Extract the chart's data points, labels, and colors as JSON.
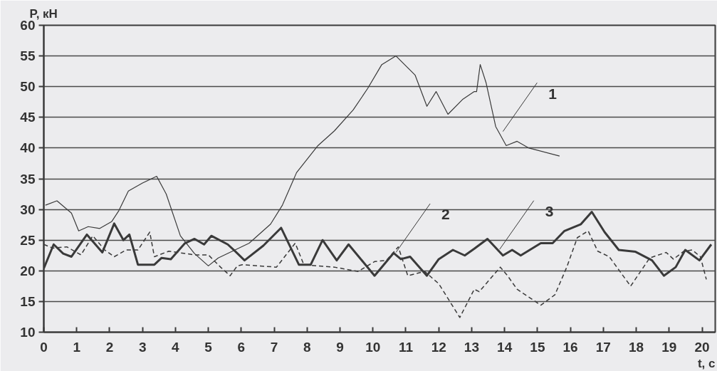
{
  "chart_data": {
    "type": "line",
    "xlabel": "t, c",
    "ylabel": "P, кН",
    "xlim": [
      0,
      20.4
    ],
    "ylim": [
      10,
      60
    ],
    "xticks": [
      0,
      1,
      2,
      3,
      4,
      5,
      6,
      7,
      8,
      9,
      10,
      11,
      12,
      13,
      14,
      15,
      16,
      17,
      18,
      19,
      20
    ],
    "yticks": [
      10,
      15,
      20,
      25,
      30,
      35,
      40,
      45,
      50,
      55,
      60
    ],
    "grid": "y",
    "series": [
      {
        "color": "#3a3a3a",
        "line_style": "solid",
        "x": [
          0.05,
          0.4,
          0.84,
          1.06,
          1.35,
          1.7,
          2.06,
          2.28,
          2.57,
          3,
          3.43,
          3.72,
          4.15,
          4.58,
          5,
          5.3,
          5.81,
          6.24,
          6.89,
          7.25,
          7.68,
          8.33,
          8.83,
          9.4,
          9.84,
          10.27,
          10.7,
          11.28,
          11.64,
          11.92,
          12.28,
          12.72,
          13.08,
          13.15,
          13.26,
          13.44,
          13.73,
          14.05,
          14.38,
          14.74,
          15.67
        ],
        "values": [
          30.7,
          31.4,
          29.4,
          26.5,
          27.2,
          26.9,
          28,
          29.8,
          33,
          34.3,
          35.4,
          32.5,
          25.7,
          22.8,
          20.8,
          22.1,
          23.4,
          24.5,
          27.6,
          30.7,
          36,
          40.4,
          42.8,
          46.2,
          49.7,
          53.6,
          55,
          51.9,
          46.8,
          49.2,
          45.5,
          47.9,
          49.2,
          49.2,
          53.6,
          50.6,
          43.5,
          40.4,
          41.1,
          40,
          38.7
        ]
      },
      {
        "color": "#3a3a3a",
        "line_style": "dashed",
        "x": [
          0,
          0.27,
          0.7,
          1.13,
          1.49,
          1.85,
          2.14,
          2.5,
          2.86,
          3.22,
          3.36,
          3.8,
          4.58,
          5,
          5.37,
          5.66,
          5.88,
          6.03,
          6.53,
          7.07,
          7.64,
          7.9,
          8.33,
          8.83,
          9.55,
          10.05,
          10.41,
          10.77,
          11.06,
          11.57,
          12,
          12.64,
          13.08,
          13.23,
          13.87,
          14.09,
          14.38,
          15.1,
          15.53,
          15.89,
          16.21,
          16.54,
          16.83,
          17.18,
          17.83,
          18.41,
          18.91,
          19.13,
          19.45,
          19.7,
          19.95,
          20.13
        ],
        "values": [
          24.3,
          23.7,
          23.9,
          22.6,
          25.7,
          23.4,
          22.3,
          23.4,
          23.4,
          26.3,
          22.3,
          23.2,
          22.6,
          22.6,
          20.6,
          19.2,
          20.8,
          21,
          20.8,
          20.6,
          24.5,
          21,
          20.8,
          20.6,
          19.9,
          21.5,
          21.7,
          23.9,
          19.2,
          19.9,
          17.9,
          12.4,
          17,
          16.6,
          20.6,
          19.2,
          17,
          14.4,
          16.1,
          20.6,
          25.4,
          26.5,
          23.2,
          22.3,
          17.5,
          22.1,
          23,
          21.9,
          23.2,
          23.4,
          22.3,
          18.6
        ]
      },
      {
        "color": "#3a3a3a",
        "line_style": "solid",
        "x": [
          0,
          0.3,
          0.59,
          0.84,
          1.31,
          1.78,
          2.14,
          2.42,
          2.6,
          2.86,
          3.36,
          3.58,
          3.86,
          4.29,
          4.58,
          4.87,
          5.09,
          5.59,
          5.81,
          6.1,
          6.67,
          7.21,
          7.75,
          8.11,
          8.47,
          8.9,
          9.26,
          10.05,
          10.63,
          10.85,
          11.13,
          11.64,
          12,
          12.43,
          12.79,
          13.08,
          13.48,
          13.95,
          14.23,
          14.49,
          15.1,
          15.46,
          15.82,
          16.32,
          16.65,
          17.04,
          17.47,
          17.98,
          18.48,
          18.84,
          19.2,
          19.49,
          19.92,
          20.28
        ],
        "values": [
          20.4,
          24.3,
          22.8,
          22.3,
          25.9,
          23,
          27.7,
          25,
          25.9,
          21,
          21,
          22.1,
          21.9,
          24.5,
          25.2,
          24.3,
          25.7,
          24.3,
          23.2,
          21.7,
          24.1,
          27,
          21,
          21,
          25,
          21.7,
          24.3,
          19.2,
          22.9,
          21.9,
          22.3,
          19.2,
          21.9,
          23.4,
          22.5,
          23.6,
          25.2,
          22.5,
          23.4,
          22.5,
          24.5,
          24.5,
          26.5,
          27.6,
          29.6,
          26.3,
          23.4,
          23.1,
          21.7,
          19.2,
          20.6,
          23.4,
          21.7,
          24.3
        ]
      }
    ],
    "annotations": [
      {
        "text": "1",
        "x": 13.95,
        "y": 42.7
      },
      {
        "text": "2",
        "x": 10.7,
        "y": 23
      },
      {
        "text": "3",
        "x": 13.85,
        "y": 23.5
      }
    ]
  }
}
